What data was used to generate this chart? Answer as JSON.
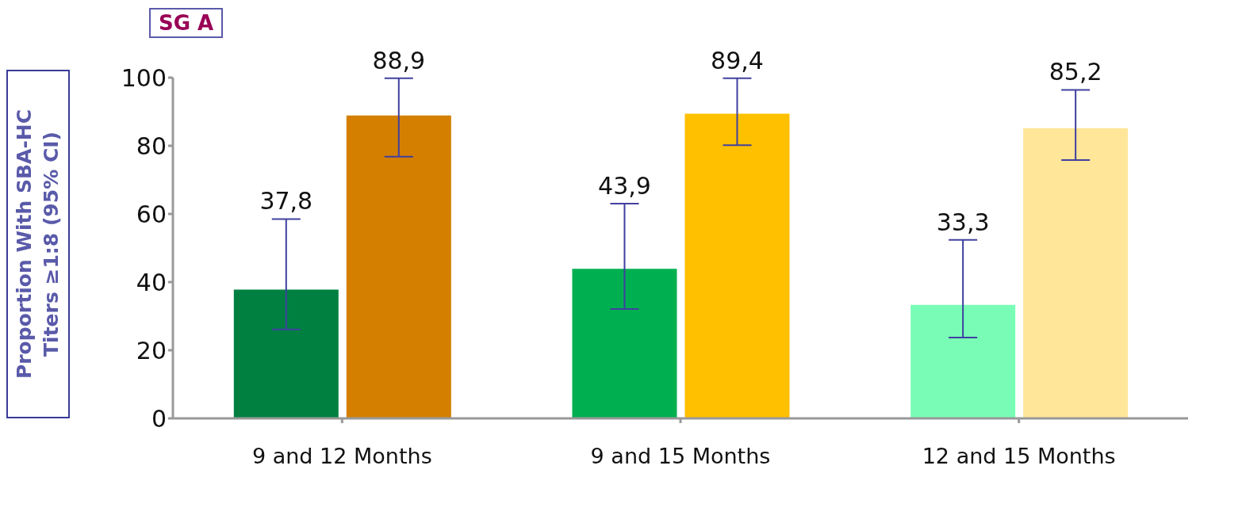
{
  "chart_data": {
    "type": "bar",
    "title": "SG A",
    "ylabel": "Proportion With SBA-HC Titers ≥1:8 (95% CI)",
    "categories": [
      "9 and 12 Months",
      "9 and 15 Months",
      "12 and 15 Months"
    ],
    "series": [
      {
        "colors": [
          "#008040",
          "#00b050",
          "#79fdb6"
        ],
        "values": [
          37.8,
          43.9,
          33.3
        ],
        "errors": [
          [
            26.1,
            58.5
          ],
          [
            32.1,
            63
          ],
          [
            23.7,
            52.4
          ]
        ],
        "value_labels": [
          "37,8",
          "43,9",
          "33,3"
        ]
      },
      {
        "colors": [
          "#d47f00",
          "#ffc000",
          "#ffe699"
        ],
        "values": [
          88.9,
          89.4,
          85.2
        ],
        "errors": [
          [
            76.8,
            99.8
          ],
          [
            80.2,
            99.8
          ],
          [
            75.8,
            96.4
          ]
        ],
        "value_labels": [
          "88,9",
          "89,4",
          "85,2"
        ]
      }
    ],
    "ylim": [
      0,
      100
    ],
    "yticks": [
      0,
      20,
      40,
      60,
      80,
      100
    ],
    "grid": false,
    "legend": false
  }
}
